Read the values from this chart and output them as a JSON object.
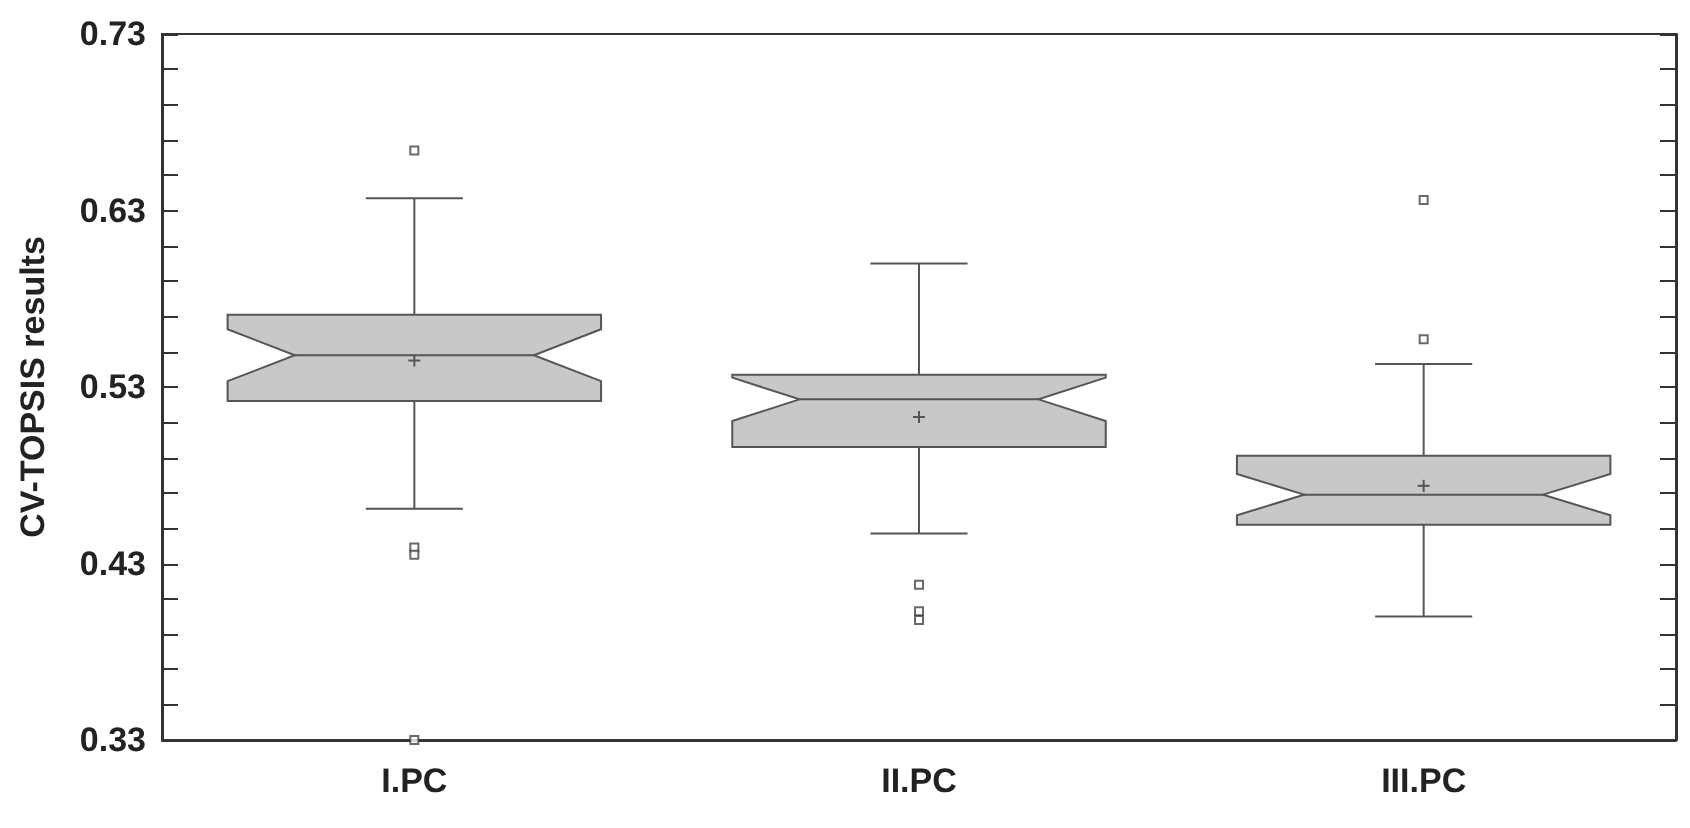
{
  "chart_data": {
    "type": "box",
    "ylabel": "CV-TOPSIS results",
    "categories": [
      "I.PC",
      "II.PC",
      "III.PC"
    ],
    "boxes": [
      {
        "low": 0.461,
        "q1": 0.522,
        "median": 0.548,
        "q3": 0.571,
        "high": 0.637,
        "mean": 0.545,
        "outliers": [
          0.664,
          0.439,
          0.435,
          0.33
        ]
      },
      {
        "low": 0.447,
        "q1": 0.496,
        "median": 0.523,
        "q3": 0.537,
        "high": 0.6,
        "mean": 0.513,
        "outliers": [
          0.418,
          0.403,
          0.398
        ]
      },
      {
        "low": 0.4,
        "q1": 0.452,
        "median": 0.469,
        "q3": 0.491,
        "high": 0.543,
        "mean": 0.474,
        "outliers": [
          0.636,
          0.557
        ]
      }
    ],
    "color": "#c8c8c8",
    "ylim": [
      0.33,
      0.73
    ],
    "yticks": [
      0.33,
      {
        "value": 0.35,
        "label": null
      },
      {
        "value": 0.37,
        "label": null
      },
      {
        "value": 0.39,
        "label": null
      },
      {
        "value": 0.41,
        "label": null
      },
      0.43,
      {
        "value": 0.45,
        "label": null
      },
      {
        "value": 0.47,
        "label": null
      },
      {
        "value": 0.49,
        "label": null
      },
      {
        "value": 0.51,
        "label": null
      },
      0.53,
      {
        "value": 0.55,
        "label": null
      },
      {
        "value": 0.57,
        "label": null
      },
      {
        "value": 0.59,
        "label": null
      },
      {
        "value": 0.61,
        "label": null
      },
      0.63,
      {
        "value": 0.65,
        "label": null
      },
      {
        "value": 0.67,
        "label": null
      },
      {
        "value": 0.69,
        "label": null
      },
      {
        "value": 0.71,
        "label": null
      },
      0.73
    ],
    "grid": false,
    "marker": "square"
  }
}
